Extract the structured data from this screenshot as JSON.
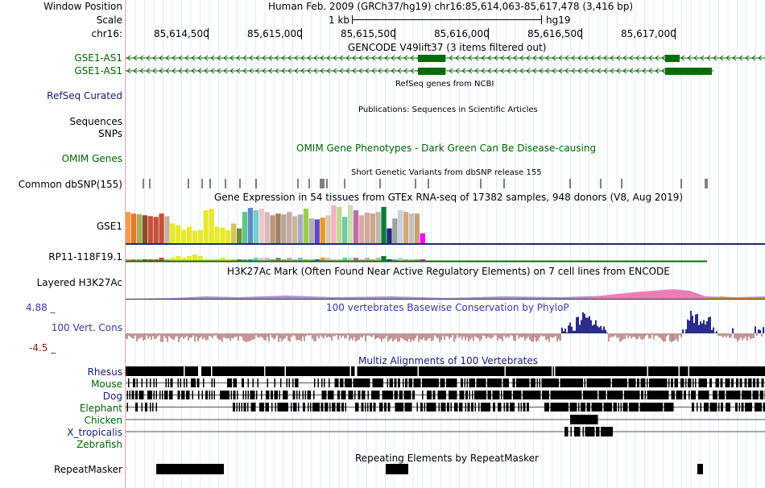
{
  "header": {
    "window_position_label": "Window Position",
    "position_text": "Human Feb. 2009 (GRCh37/hg19)   chr16:85,614,063-85,617,478 (3,416 bp)",
    "scale_label": "Scale",
    "scale_text": "1 kb",
    "assembly": "hg19",
    "chrom_label": "chr16:",
    "ruler_ticks": [
      "85,614,500",
      "85,615,000",
      "85,615,500",
      "85,616,000",
      "85,616,500",
      "85,617,000"
    ]
  },
  "tracks": {
    "gencode_title": "GENCODE V49lift37 (3 items filtered out)",
    "gencode_genes": [
      "GSE1-AS1",
      "GSE1-AS1"
    ],
    "refseq_title": "RefSeq genes from NCBI",
    "refseq_label": "RefSeq Curated",
    "publications_title": "Publications: Sequences in Scientific Articles",
    "sequences_label": "Sequences",
    "snps_label": "SNPs",
    "omim_title": "OMIM Gene Phenotypes - Dark Green Can Be Disease-causing",
    "omim_label": "OMIM Genes",
    "dbsnp_title": "Short Genetic Variants from dbSNP release 155",
    "dbsnp_label": "Common dbSNP(155)",
    "gtex_title": "Gene Expression in 54 tissues from GTEx RNA-seq of 17382 samples, 948 donors (V8, Aug 2019)",
    "gtex_gene1": "GSE1",
    "gtex_gene2": "RP11-118F19.1",
    "h3k27ac_title": "H3K27Ac Mark (Often Found Near Active Regulatory Elements) on 7 cell lines from ENCODE",
    "h3k27ac_label": "Layered H3K27Ac",
    "phylop_max": "4.88 _",
    "phylop_title": "100 vertebrates Basewise Conservation by PhyloP",
    "phylop_label": "100 Vert. Cons",
    "phylop_min": "-4.5 _",
    "multiz_title": "Multiz Alignments of 100 Vertebrates",
    "species": [
      "Rhesus",
      "Mouse",
      "Dog",
      "Elephant",
      "Chicken",
      "X_tropicalis",
      "Zebrafish"
    ],
    "repeat_title": "Repeating Elements by RepeatMasker",
    "repeat_label": "RepeatMasker"
  },
  "chart_data": {
    "type": "bar",
    "title": "Gene Expression in 54 tissues from GTEx RNA-seq of 17382 samples, 948 donors (V8, Aug 2019)",
    "series": [
      {
        "name": "GSE1",
        "values": [
          38,
          36,
          35,
          34,
          33,
          32,
          36,
          33,
          24,
          22,
          16,
          20,
          15,
          16,
          40,
          42,
          20,
          19,
          16,
          24,
          18,
          38,
          43,
          40,
          42,
          38,
          34,
          36,
          35,
          38,
          33,
          35,
          42,
          30,
          29,
          31,
          34,
          46,
          44,
          32,
          46,
          40,
          34,
          37,
          36,
          38,
          44,
          18,
          30,
          40,
          38,
          36,
          36,
          12
        ],
        "colors": [
          "#f39a4e",
          "#e6772b",
          "#a3b15a",
          "#8b4c2c",
          "#c5503d",
          "#c5503d",
          "#c5503d",
          "#c8b29a",
          "#e8e82e",
          "#e8e82e",
          "#e8e82e",
          "#e8e82e",
          "#e8e82e",
          "#e8e82e",
          "#e8e82e",
          "#e8e82e",
          "#e8e82e",
          "#e8e82e",
          "#e8e82e",
          "#d4c65a",
          "#6e8e3a",
          "#5bc88a",
          "#5b8bc8",
          "#6ecfcf",
          "#e8c8c8",
          "#d8b8b8",
          "#b89878",
          "#a08060",
          "#b8a898",
          "#c8a8a8",
          "#c8b898",
          "#a8a8c8",
          "#9ecc4a",
          "#b0b0b0",
          "#6048c0",
          "#e39a2a",
          "#d8c8a8",
          "#f3b0c8",
          "#c0d890",
          "#6ec8a8",
          "#c8e0a8",
          "#c06aa8",
          "#d8a8a8",
          "#d0a898",
          "#c8a888",
          "#c0b8a8",
          "#0b7b3b",
          "#1d2a78",
          "#a0a0a0",
          "#c8d0e0",
          "#d8a878",
          "#c0c0c0",
          "#c8a070",
          "#ff00ff"
        ]
      },
      {
        "name": "RP11-118F19.1",
        "values": [
          1,
          1,
          1,
          1,
          1,
          1,
          2,
          1,
          2,
          3,
          2,
          3,
          4,
          3,
          1,
          1,
          1,
          2,
          1,
          1,
          1,
          1,
          1,
          2,
          2,
          2,
          1,
          2,
          1,
          2,
          1,
          2,
          1,
          1,
          1,
          2,
          2,
          1,
          1,
          2,
          2,
          2,
          1,
          2,
          1,
          2,
          3,
          1,
          1,
          2,
          1,
          1,
          1,
          1
        ]
      }
    ],
    "ylim": [
      0,
      46
    ]
  }
}
